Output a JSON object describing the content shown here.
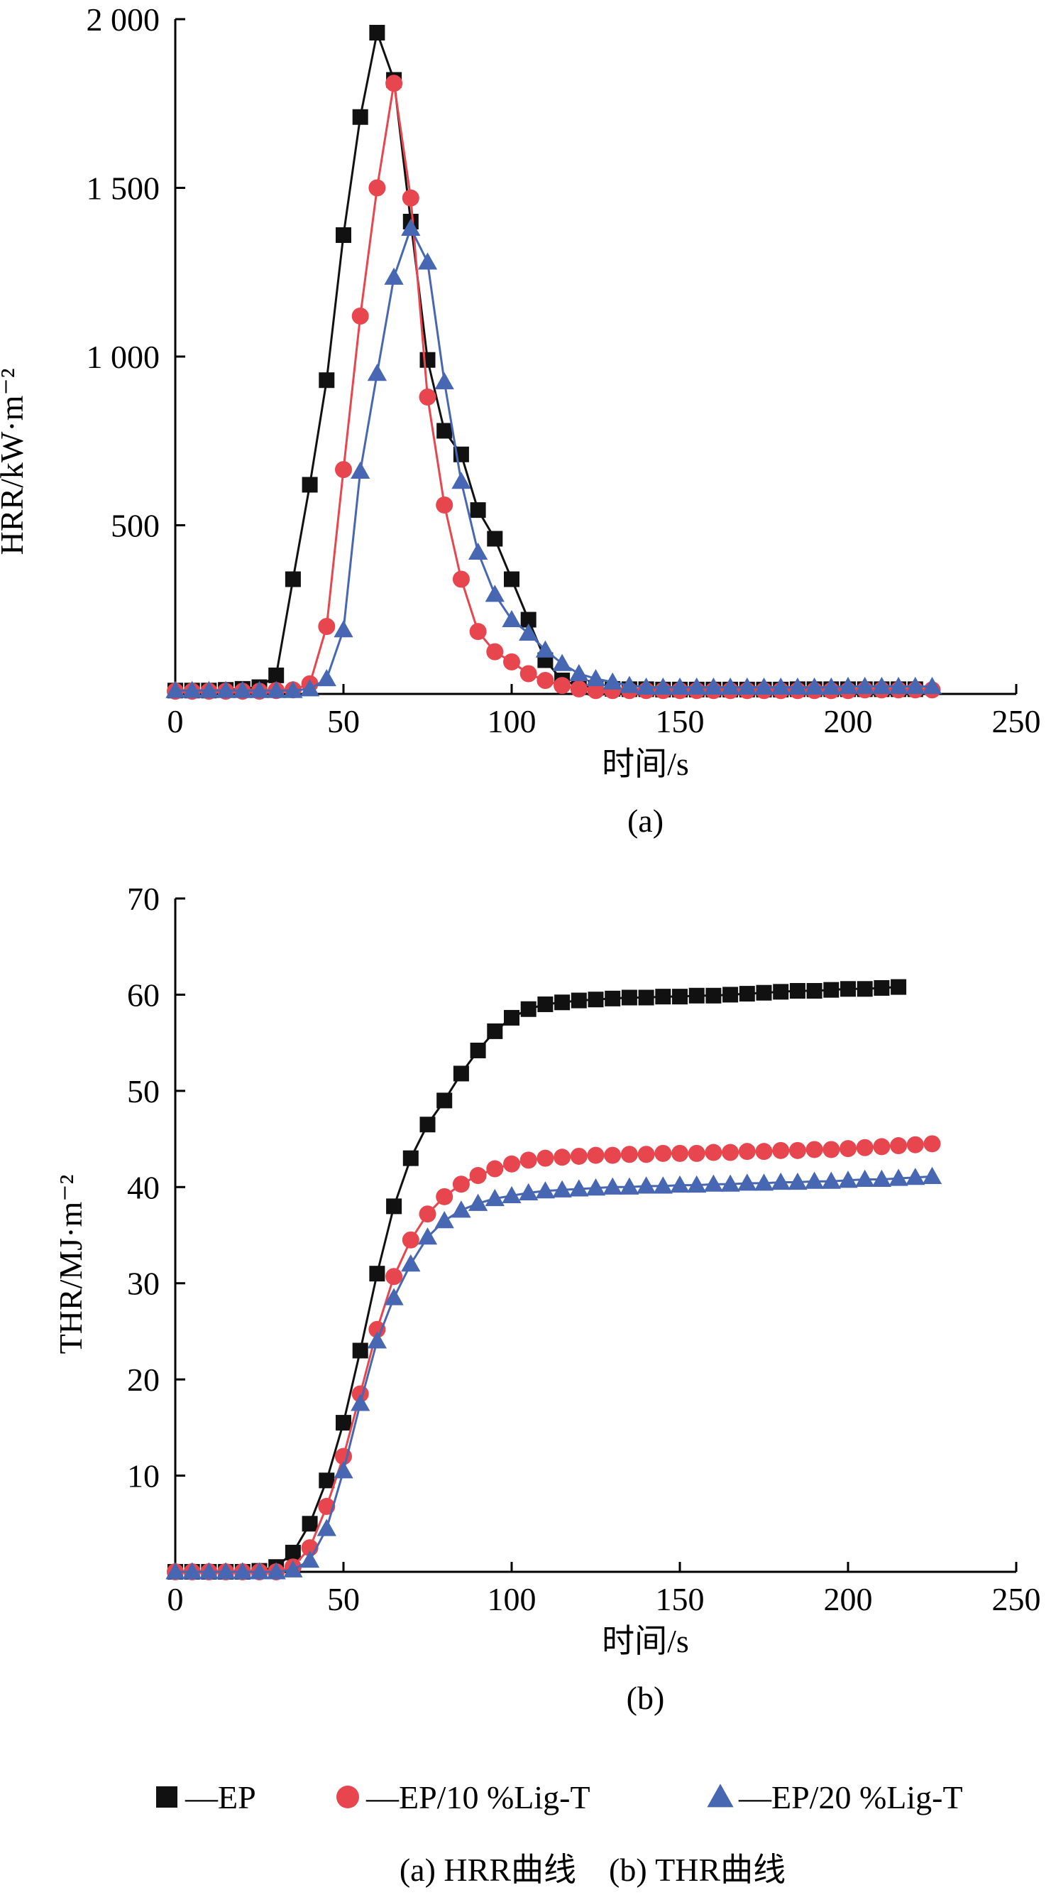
{
  "colors": {
    "EP": "#111111",
    "EP/10 %Lig-T": "#e8464f",
    "EP/20 %Lig-T": "#4867b2"
  },
  "chart_data": [
    {
      "type": "line",
      "panel_label": "(a)",
      "xlabel": "时间/s",
      "ylabel": "HRR/kW·m⁻²",
      "xlim": [
        0,
        250
      ],
      "ylim": [
        0,
        2000
      ],
      "xticks": [
        "0",
        "50",
        "100",
        "150",
        "200",
        "250"
      ],
      "yticks": [
        "500",
        "1 000",
        "1 500",
        "2 000"
      ],
      "ytick_values": [
        500,
        1000,
        1500,
        2000
      ],
      "series": [
        {
          "name": "EP",
          "marker": "square",
          "x": [
            0,
            5,
            10,
            15,
            20,
            25,
            30,
            35,
            40,
            45,
            50,
            55,
            60,
            65,
            70,
            75,
            80,
            85,
            90,
            95,
            100,
            105,
            110,
            115,
            120,
            125,
            130,
            135,
            140,
            145,
            150,
            155,
            160,
            165,
            170,
            175,
            180,
            185,
            190,
            195,
            200,
            205,
            210,
            215,
            220
          ],
          "y": [
            10,
            10,
            10,
            12,
            15,
            20,
            55,
            340,
            620,
            930,
            1360,
            1710,
            1960,
            1820,
            1400,
            990,
            780,
            710,
            545,
            460,
            340,
            220,
            100,
            40,
            25,
            18,
            15,
            14,
            14,
            13,
            13,
            13,
            13,
            13,
            13,
            13,
            13,
            14,
            14,
            14,
            14,
            14,
            14,
            14,
            14
          ]
        },
        {
          "name": "EP/10 %Lig-T",
          "marker": "circle",
          "x": [
            0,
            5,
            10,
            15,
            20,
            25,
            30,
            35,
            40,
            45,
            50,
            55,
            60,
            65,
            70,
            75,
            80,
            85,
            90,
            95,
            100,
            105,
            110,
            115,
            120,
            125,
            130,
            135,
            140,
            145,
            150,
            155,
            160,
            165,
            170,
            175,
            180,
            185,
            190,
            195,
            200,
            205,
            210,
            215,
            220,
            225
          ],
          "y": [
            8,
            8,
            8,
            8,
            8,
            8,
            10,
            12,
            30,
            200,
            665,
            1120,
            1500,
            1810,
            1470,
            880,
            560,
            340,
            185,
            125,
            95,
            60,
            40,
            25,
            15,
            10,
            10,
            10,
            10,
            10,
            10,
            10,
            10,
            10,
            10,
            10,
            10,
            10,
            10,
            10,
            10,
            12,
            12,
            12,
            12,
            12
          ],
          "y_fix_note": ""
        },
        {
          "name": "EP/20 %Lig-T",
          "marker": "triangle",
          "x": [
            0,
            5,
            10,
            15,
            20,
            25,
            30,
            35,
            40,
            45,
            50,
            55,
            60,
            65,
            70,
            75,
            80,
            85,
            90,
            95,
            100,
            105,
            110,
            115,
            120,
            125,
            130,
            135,
            140,
            145,
            150,
            155,
            160,
            165,
            170,
            175,
            180,
            185,
            190,
            195,
            200,
            205,
            210,
            215,
            220,
            225
          ],
          "y": [
            10,
            10,
            10,
            10,
            10,
            10,
            10,
            10,
            15,
            45,
            190,
            660,
            950,
            1235,
            1380,
            1280,
            925,
            630,
            420,
            295,
            220,
            180,
            130,
            90,
            60,
            45,
            35,
            25,
            20,
            20,
            20,
            20,
            20,
            20,
            20,
            20,
            20,
            20,
            20,
            20,
            22,
            22,
            22,
            22,
            22,
            22
          ]
        }
      ]
    },
    {
      "type": "line",
      "panel_label": "(b)",
      "xlabel": "时间/s",
      "ylabel": "THR/MJ·m⁻²",
      "xlim": [
        0,
        250
      ],
      "ylim": [
        0,
        70
      ],
      "xticks": [
        "0",
        "50",
        "100",
        "150",
        "200",
        "250"
      ],
      "yticks": [
        "10",
        "20",
        "30",
        "40",
        "50",
        "60",
        "70"
      ],
      "ytick_values": [
        10,
        20,
        30,
        40,
        50,
        60,
        70
      ],
      "series": [
        {
          "name": "EP",
          "marker": "square",
          "x": [
            0,
            5,
            10,
            15,
            20,
            25,
            30,
            35,
            40,
            45,
            50,
            55,
            60,
            65,
            70,
            75,
            80,
            85,
            90,
            95,
            100,
            105,
            110,
            115,
            120,
            125,
            130,
            135,
            140,
            145,
            150,
            155,
            160,
            165,
            170,
            175,
            180,
            185,
            190,
            195,
            200,
            205,
            210,
            215
          ],
          "y": [
            0,
            0,
            0,
            0,
            0,
            0.1,
            0.5,
            2,
            5,
            9.5,
            15.5,
            23,
            31,
            38,
            43,
            46.5,
            49,
            51.8,
            54.2,
            56.2,
            57.6,
            58.5,
            59,
            59.2,
            59.4,
            59.5,
            59.6,
            59.7,
            59.7,
            59.8,
            59.8,
            59.9,
            59.9,
            60,
            60.1,
            60.2,
            60.3,
            60.4,
            60.4,
            60.5,
            60.6,
            60.6,
            60.7,
            60.8
          ]
        },
        {
          "name": "EP/10 %Lig-T",
          "marker": "circle",
          "x": [
            0,
            5,
            10,
            15,
            20,
            25,
            30,
            35,
            40,
            45,
            50,
            55,
            60,
            65,
            70,
            75,
            80,
            85,
            90,
            95,
            100,
            105,
            110,
            115,
            120,
            125,
            130,
            135,
            140,
            145,
            150,
            155,
            160,
            165,
            170,
            175,
            180,
            185,
            190,
            195,
            200,
            205,
            210,
            215,
            220,
            225
          ],
          "y": [
            0,
            0,
            0,
            0,
            0,
            0,
            0,
            0.5,
            2.5,
            6.8,
            12,
            18.5,
            25.2,
            30.7,
            34.5,
            37.2,
            39,
            40.3,
            41.2,
            41.9,
            42.4,
            42.8,
            43,
            43.1,
            43.2,
            43.3,
            43.3,
            43.4,
            43.4,
            43.5,
            43.5,
            43.5,
            43.6,
            43.6,
            43.7,
            43.7,
            43.8,
            43.8,
            43.9,
            43.9,
            44,
            44.1,
            44.2,
            44.3,
            44.4,
            44.5
          ]
        },
        {
          "name": "EP/20 %Lig-T",
          "marker": "triangle",
          "x": [
            0,
            5,
            10,
            15,
            20,
            25,
            30,
            35,
            40,
            45,
            50,
            55,
            60,
            65,
            70,
            75,
            80,
            85,
            90,
            95,
            100,
            105,
            110,
            115,
            120,
            125,
            130,
            135,
            140,
            145,
            150,
            155,
            160,
            165,
            170,
            175,
            180,
            185,
            190,
            195,
            200,
            205,
            210,
            215,
            220,
            225
          ],
          "y": [
            0,
            0,
            0,
            0,
            0,
            0,
            0,
            0.2,
            1.2,
            4.5,
            10.5,
            17.5,
            24,
            28.5,
            32,
            34.8,
            36.5,
            37.6,
            38.3,
            38.8,
            39.1,
            39.4,
            39.6,
            39.7,
            39.8,
            39.9,
            40,
            40,
            40.1,
            40.1,
            40.2,
            40.2,
            40.3,
            40.3,
            40.4,
            40.4,
            40.5,
            40.5,
            40.6,
            40.6,
            40.7,
            40.8,
            40.8,
            40.9,
            41,
            41.1
          ]
        }
      ]
    }
  ],
  "legend": [
    {
      "marker": "square",
      "label": "—EP"
    },
    {
      "marker": "circle",
      "label": "—EP/10 %Lig-T"
    },
    {
      "marker": "triangle",
      "label": "—EP/20 %Lig-T"
    }
  ],
  "caption": "(a) HRR曲线　(b) THR曲线"
}
